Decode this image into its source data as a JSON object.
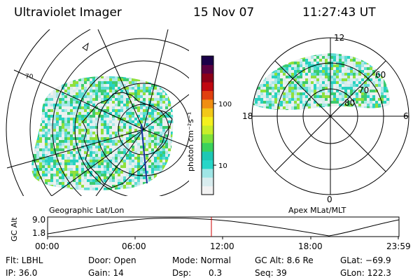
{
  "header": {
    "instrument": "Ultraviolet Imager",
    "date": "15 Nov 07",
    "time": "11:27:43 UT"
  },
  "left_panel": {
    "caption": "Geographic Lat/Lon",
    "lat_label": "70"
  },
  "colorbar": {
    "unit_label": "photon cm⁻²s⁻¹",
    "ticks": [
      "100",
      "10"
    ],
    "scale": "log",
    "colors": [
      "#f2f2f2",
      "#d8ecee",
      "#9fe6e6",
      "#28d6c8",
      "#1ec8b4",
      "#3ad25c",
      "#7fe23a",
      "#c8ee2a",
      "#f4f01e",
      "#f2c818",
      "#f08e12",
      "#e04010",
      "#c00810",
      "#8c0018",
      "#5a0040",
      "#1a0048"
    ]
  },
  "right_panel": {
    "caption": "Apex  MLat/MLT",
    "mlt_labels": {
      "top": "12",
      "left": "18",
      "right": "6",
      "bottom": "0"
    },
    "mlat_labels": [
      "60",
      "70",
      "80"
    ]
  },
  "altitude_plot": {
    "ylabel": "GC Alt",
    "yticks": [
      "9.0",
      "1.8"
    ],
    "xticks": [
      "00:00",
      "06:00",
      "12:00",
      "18:00",
      "23:59"
    ],
    "marker_time": "11:27",
    "marker_color": "#cc0000"
  },
  "footer": {
    "flt": "Flt: LBHL",
    "ip": "IP: 36.0",
    "door": "Door: Open",
    "gain": "Gain: 14",
    "mode": "Mode: Normal",
    "dsp_label": "Dsp:",
    "dsp_value": "0.3",
    "gcalt": "GC Alt: 8.6 Re",
    "seq": "Seq: 39",
    "glat": "GLat: −69.9",
    "glon": "GLon: 122.3"
  }
}
